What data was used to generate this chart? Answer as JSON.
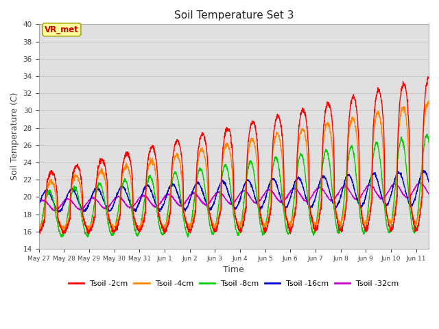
{
  "title": "Soil Temperature Set 3",
  "xlabel": "Time",
  "ylabel": "Soil Temperature (C)",
  "ylim": [
    14,
    40
  ],
  "yticks": [
    14,
    16,
    18,
    20,
    22,
    24,
    26,
    28,
    30,
    32,
    34,
    36,
    38,
    40
  ],
  "series_colors": {
    "Tsoil -2cm": "#ff0000",
    "Tsoil -4cm": "#ff8800",
    "Tsoil -8cm": "#00cc00",
    "Tsoil -16cm": "#0000cc",
    "Tsoil -32cm": "#cc00cc"
  },
  "annotation_text": "VR_met",
  "annotation_bg": "#ffff99",
  "annotation_border": "#999900",
  "annotation_textcolor": "#cc0000",
  "linewidth": 1.0,
  "n_days": 15.5,
  "points_per_day": 144,
  "xtick_labels": [
    "May 27",
    "May 28",
    "May 29",
    "May 30",
    "May 31",
    "Jun 1",
    "Jun 2",
    "Jun 3",
    "Jun 4",
    "Jun 5",
    "Jun 6",
    "Jun 7",
    "Jun 8",
    "Jun 9",
    "Jun 10",
    "Jun 11"
  ],
  "xtick_positions": [
    0,
    1,
    2,
    3,
    4,
    5,
    6,
    7,
    8,
    9,
    10,
    11,
    12,
    13,
    14,
    15
  ]
}
